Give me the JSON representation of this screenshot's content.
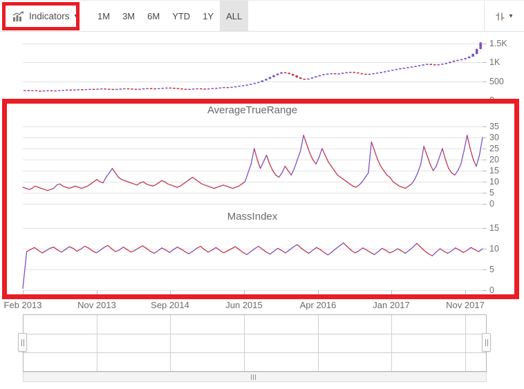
{
  "toolbar": {
    "indicators_label": "Indicators",
    "periods": [
      "1M",
      "3M",
      "6M",
      "YTD",
      "1Y",
      "ALL"
    ],
    "selected_period": "ALL"
  },
  "colors": {
    "candle_bull": "#7b51c6",
    "candle_bear": "#d02b39",
    "indicator_main": "#c03852",
    "indicator_alt": "#7b51c6",
    "annotation": "#ea1c24",
    "grid": "#e2e2e2",
    "axis_label": "#6e6e6e",
    "selected_period_bg": "#e4e4e4"
  },
  "xaxis": {
    "labels": [
      "Feb 2013",
      "Nov 2013",
      "Sep 2014",
      "Jun 2015",
      "Apr 2016",
      "Jan 2017",
      "Nov 2017"
    ]
  },
  "chart_data": [
    {
      "id": "price",
      "type": "candlestick",
      "title": "",
      "yticks": [
        "1.5K",
        "1K",
        "500",
        "0"
      ],
      "ylim": [
        0,
        1500
      ],
      "xlim": [
        "Feb 2013",
        "Dec 2017"
      ],
      "closes": [
        265,
        258,
        262,
        252,
        248,
        255,
        260,
        250,
        256,
        263,
        270,
        278,
        272,
        280,
        288,
        282,
        292,
        298,
        290,
        302,
        308,
        300,
        295,
        288,
        296,
        305,
        312,
        306,
        298,
        292,
        300,
        310,
        318,
        312,
        305,
        315,
        325,
        332,
        326,
        318,
        310,
        300,
        292,
        298,
        306,
        312,
        305,
        298,
        308,
        318,
        325,
        335,
        345,
        340,
        352,
        365,
        380,
        395,
        410,
        430,
        455,
        480,
        520,
        560,
        610,
        660,
        700,
        735,
        720,
        690,
        650,
        600,
        565,
        545,
        570,
        600,
        630,
        660,
        685,
        700,
        710,
        695,
        705,
        720,
        735,
        745,
        730,
        710,
        695,
        685,
        695,
        710,
        725,
        740,
        760,
        780,
        800,
        820,
        840,
        855,
        870,
        885,
        900,
        920,
        940,
        955,
        945,
        930,
        945,
        960,
        980,
        1010,
        1040,
        1060,
        1080,
        1110,
        1150,
        1220,
        1350,
        1520
      ]
    },
    {
      "id": "average-true-range",
      "type": "line",
      "title": "AverageTrueRange",
      "yticks": [
        "35",
        "30",
        "25",
        "20",
        "15",
        "10",
        "5",
        "0"
      ],
      "ylim": [
        0,
        35
      ],
      "values": [
        7.5,
        7,
        6.5,
        7,
        8,
        7.5,
        7,
        6.5,
        6,
        6.5,
        7,
        8.5,
        9,
        8,
        7.5,
        7,
        7.5,
        8,
        7.5,
        7,
        7.5,
        8,
        9,
        10,
        11,
        10,
        9.5,
        12,
        14,
        16,
        14,
        12,
        11,
        10.5,
        10,
        9.5,
        9,
        8.5,
        9.5,
        10,
        9,
        8.5,
        8,
        8.5,
        9.5,
        10.5,
        10,
        9,
        8.5,
        8,
        7.5,
        8,
        9,
        10,
        11,
        12,
        11,
        10,
        9,
        8.5,
        8,
        7.5,
        7,
        7.5,
        8,
        8.5,
        8,
        7.5,
        7,
        7.5,
        8,
        9,
        10,
        14,
        18,
        25,
        20,
        16,
        19,
        22,
        18,
        15,
        13,
        12,
        14,
        17,
        15,
        13,
        16,
        20,
        24,
        31,
        27,
        23,
        20,
        18,
        21,
        25,
        22,
        19,
        17,
        15,
        13,
        12,
        11,
        10,
        9,
        8,
        7.5,
        8.5,
        10,
        12,
        14,
        28,
        24,
        20,
        17,
        15,
        13,
        12,
        10,
        9,
        8,
        7.5,
        7,
        8,
        9,
        11,
        14,
        18,
        26,
        22,
        18,
        15,
        17,
        21,
        25,
        20,
        16,
        14,
        13,
        15,
        18,
        24,
        31,
        25,
        20,
        17,
        22,
        30
      ]
    },
    {
      "id": "mass-index",
      "type": "line",
      "title": "MassIndex",
      "yticks": [
        "15",
        "10",
        "5",
        "0"
      ],
      "ylim": [
        0,
        15
      ],
      "values": [
        0.4,
        9.3,
        9.8,
        10.3,
        9.6,
        9.0,
        9.5,
        10.1,
        10.4,
        9.7,
        9.2,
        9.8,
        10.5,
        10.1,
        9.4,
        9.9,
        10.6,
        10.2,
        9.5,
        9.0,
        9.6,
        10.3,
        10.8,
        10.0,
        9.3,
        9.7,
        10.4,
        9.8,
        9.2,
        9.6,
        10.2,
        10.7,
        10.1,
        9.4,
        8.9,
        9.5,
        10.2,
        9.7,
        9.1,
        9.8,
        10.4,
        9.9,
        9.3,
        8.8,
        9.4,
        10.1,
        10.6,
        9.8,
        9.2,
        9.7,
        10.3,
        9.6,
        9.0,
        9.5,
        10.0,
        10.5,
        9.8,
        9.1,
        8.6,
        9.3,
        10.0,
        10.6,
        9.9,
        9.2,
        8.7,
        9.4,
        10.1,
        9.6,
        9.0,
        9.7,
        10.4,
        11.0,
        10.2,
        9.5,
        8.9,
        9.6,
        10.3,
        9.8,
        9.1,
        8.5,
        9.2,
        10.0,
        10.7,
        11.4,
        10.5,
        9.6,
        9.0,
        9.5,
        10.2,
        9.7,
        9.1,
        8.6,
        9.3,
        10.1,
        9.6,
        9.0,
        9.4,
        10.0,
        9.5,
        8.9,
        9.6,
        10.4,
        11.3,
        10.4,
        9.5,
        8.8,
        8.3,
        9.2,
        10.0,
        9.4,
        8.9,
        9.5,
        10.2,
        9.7,
        9.1,
        9.6,
        10.3,
        9.8,
        9.3,
        10.0
      ]
    },
    {
      "id": "range-navigator",
      "type": "candlestick",
      "title": "",
      "uses": "price.closes",
      "ylim": [
        0,
        1600
      ]
    }
  ]
}
